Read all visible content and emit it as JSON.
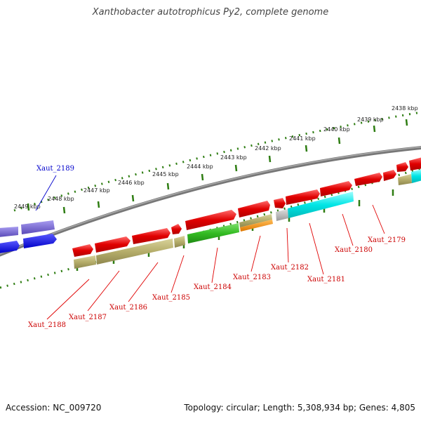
{
  "title": "Xanthobacter autotrophicus Py2, complete genome",
  "footer": {
    "accession": "Accession: NC_009720",
    "stats": "Topology: circular; Length: 5,308,934 bp; Genes: 4,805"
  },
  "scale_labels": [
    "2438 kbp",
    "2439 kbp",
    "2440 kbp",
    "2441 kbp",
    "2442 kbp",
    "2443 kbp",
    "2444 kbp",
    "2445 kbp",
    "2446 kbp",
    "2447 kbp",
    "2448 kbp",
    "2449 kbp"
  ],
  "gene_labels": [
    "Xaut_2189",
    "Xaut_2188",
    "Xaut_2187",
    "Xaut_2186",
    "Xaut_2185",
    "Xaut_2184",
    "Xaut_2183",
    "Xaut_2182",
    "Xaut_2181",
    "Xaut_2180",
    "Xaut_2179"
  ],
  "colors": {
    "red": "#e00000",
    "olive": "#b5ad6a",
    "green": "#33bb22",
    "orange": "#ee8800",
    "gray": "#aaaaaa",
    "cyan": "#00e5e5",
    "purple": "#6a5acd",
    "blue": "#0000ee",
    "backbone": "#808080",
    "tick": "#2e7d12"
  }
}
